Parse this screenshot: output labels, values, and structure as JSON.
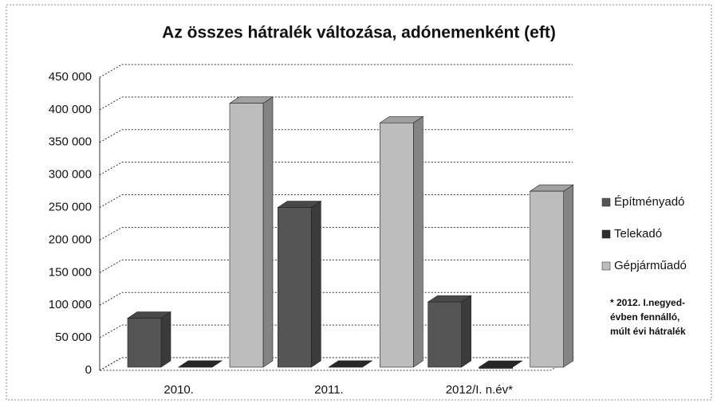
{
  "chart_data": {
    "type": "bar3d",
    "title": "Az összes hátralék változása, adónemenként (eft)",
    "categories": [
      "2010.",
      "2011.",
      "2012/I. n.év*"
    ],
    "series": [
      {
        "name": "Építményadó",
        "color": "#555555",
        "values": [
          80000,
          250000,
          105000
        ]
      },
      {
        "name": "Telekadó",
        "color": "#2e2e2e",
        "values": [
          5000,
          5000,
          3000
        ]
      },
      {
        "name": "Gépjárműadó",
        "color": "#bdbdbd",
        "values": [
          410000,
          380000,
          275000
        ]
      }
    ],
    "ylim": [
      0,
      450000
    ],
    "yticks": [
      0,
      {
        "value": 50000,
        "label": "50 000"
      },
      {
        "value": 100000,
        "label": "100 000"
      },
      {
        "value": 150000,
        "label": "150 000"
      },
      {
        "value": 200000,
        "label": "200 000"
      },
      {
        "value": 250000,
        "label": "250 000"
      },
      {
        "value": 300000,
        "label": "300 000"
      },
      {
        "value": 350000,
        "label": "350 000"
      },
      {
        "value": 400000,
        "label": "400 000"
      },
      {
        "value": 450000,
        "label": "450 000"
      }
    ],
    "grid": true,
    "legend": "right",
    "annotation": [
      "* 2012. I.negyed-",
      "évben fennálló,",
      "múlt évi hátralék"
    ]
  }
}
